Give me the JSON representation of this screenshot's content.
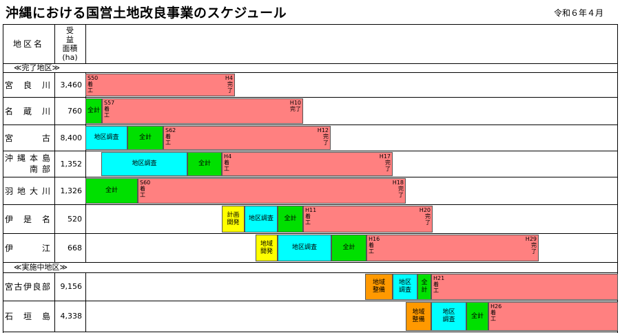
{
  "page": {
    "title": "沖縄における国営土地改良事業のスケジュール",
    "date": "令和６年４月"
  },
  "header": {
    "col_name": "地区名",
    "col_area": [
      "受",
      "益",
      "面積",
      "(ha)"
    ]
  },
  "sections": [
    {
      "label": "≪完了地区≫"
    },
    {
      "label": "≪実施中地区≫"
    }
  ],
  "rows": [
    {
      "name": "宮良川",
      "area": "3,460",
      "bars": [
        {
          "kind": "construction",
          "start_label": "S50\n着\n工",
          "end_label": "H4\n完\n了"
        }
      ]
    },
    {
      "name": "名蔵川",
      "area": "760",
      "bars": [
        {
          "kind": "design",
          "label": "全計"
        },
        {
          "kind": "construction",
          "start_label": "S57\n着\n工",
          "end_label": "H10\n完了"
        }
      ]
    },
    {
      "name": "宮古",
      "area": "8,400",
      "bars": [
        {
          "kind": "survey",
          "label": "地区調査"
        },
        {
          "kind": "design",
          "label": "全計"
        },
        {
          "kind": "construction",
          "start_label": "S62\n着\n工",
          "end_label": "H12\n完\n了"
        }
      ]
    },
    {
      "name": "沖縄本島南部",
      "name_l1": "沖縄本島",
      "name_l2": "南部",
      "area": "1,352",
      "bars": [
        {
          "kind": "survey",
          "label": "地区調査"
        },
        {
          "kind": "design",
          "label": "全計"
        },
        {
          "kind": "construction",
          "start_label": "H4\n着\n工",
          "end_label": "H17\n完\n了"
        }
      ]
    },
    {
      "name": "羽地大川",
      "area": "1,326",
      "bars": [
        {
          "kind": "design",
          "label": "全計"
        },
        {
          "kind": "construction",
          "start_label": "S60\n着\n工",
          "end_label": "H18\n完\n了"
        }
      ]
    },
    {
      "name": "伊是名",
      "area": "520",
      "bars": [
        {
          "kind": "planning",
          "label": "計画\n開発"
        },
        {
          "kind": "survey",
          "label": "地区調査"
        },
        {
          "kind": "design",
          "label": "全計"
        },
        {
          "kind": "construction",
          "start_label": "H11\n着\n工",
          "end_label": "H20\n完\n了"
        }
      ]
    },
    {
      "name": "伊江",
      "area": "668",
      "bars": [
        {
          "kind": "planning",
          "label": "地域\n開発"
        },
        {
          "kind": "survey",
          "label": "地区調査"
        },
        {
          "kind": "design",
          "label": "全計"
        },
        {
          "kind": "construction",
          "start_label": "H16\n着\n工",
          "end_label": "H29\n完\n了"
        }
      ]
    },
    {
      "name": "宮古伊良部",
      "area": "9,156",
      "bars": [
        {
          "kind": "maintenance",
          "label": "地域\n整備"
        },
        {
          "kind": "survey",
          "label": "地区\n調査"
        },
        {
          "kind": "design",
          "label": "全\n計"
        },
        {
          "kind": "construction",
          "start_label": "H21\n着\n工"
        }
      ]
    },
    {
      "name": "石垣島",
      "area": "4,338",
      "bars": [
        {
          "kind": "maintenance",
          "label": "地域\n整備"
        },
        {
          "kind": "survey",
          "label": "地区\n調査"
        },
        {
          "kind": "design",
          "label": "全計"
        },
        {
          "kind": "construction",
          "start_label": "H26\n着\n工"
        }
      ]
    }
  ],
  "colors": {
    "construction": "#ff8080",
    "design": "#00e000",
    "survey": "#00ffff",
    "planning": "#ffff00",
    "maintenance": "#ff9900"
  }
}
